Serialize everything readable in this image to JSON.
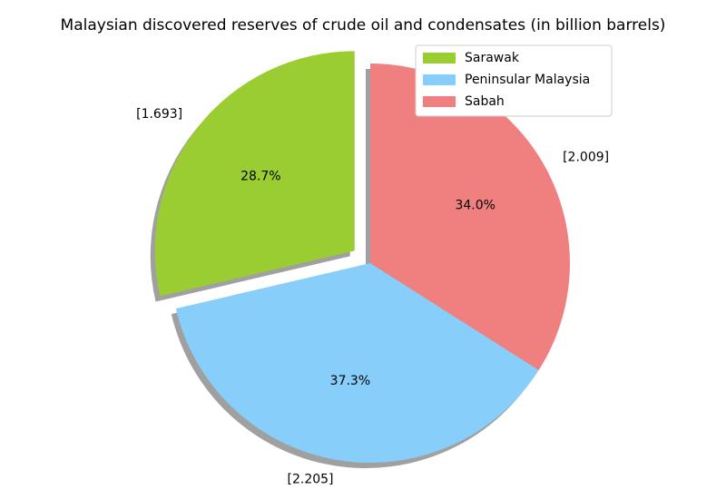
{
  "chart_data": {
    "type": "pie",
    "title": "Malaysian discovered reserves of crude oil and condensates (in billion barrels)",
    "categories": [
      "Sarawak",
      "Peninsular Malaysia",
      "Sabah"
    ],
    "values": [
      1.693,
      2.205,
      2.009
    ],
    "value_labels": [
      "[1.693]",
      "[2.205]",
      "[2.009]"
    ],
    "percent_labels": [
      "28.7%",
      "37.3%",
      "34.0%"
    ],
    "colors": [
      "#9acd32",
      "#87cefa",
      "#f08080"
    ],
    "explode": [
      0.1,
      0,
      0
    ],
    "startangle": 90,
    "shadow": true,
    "legend": "upper right"
  }
}
